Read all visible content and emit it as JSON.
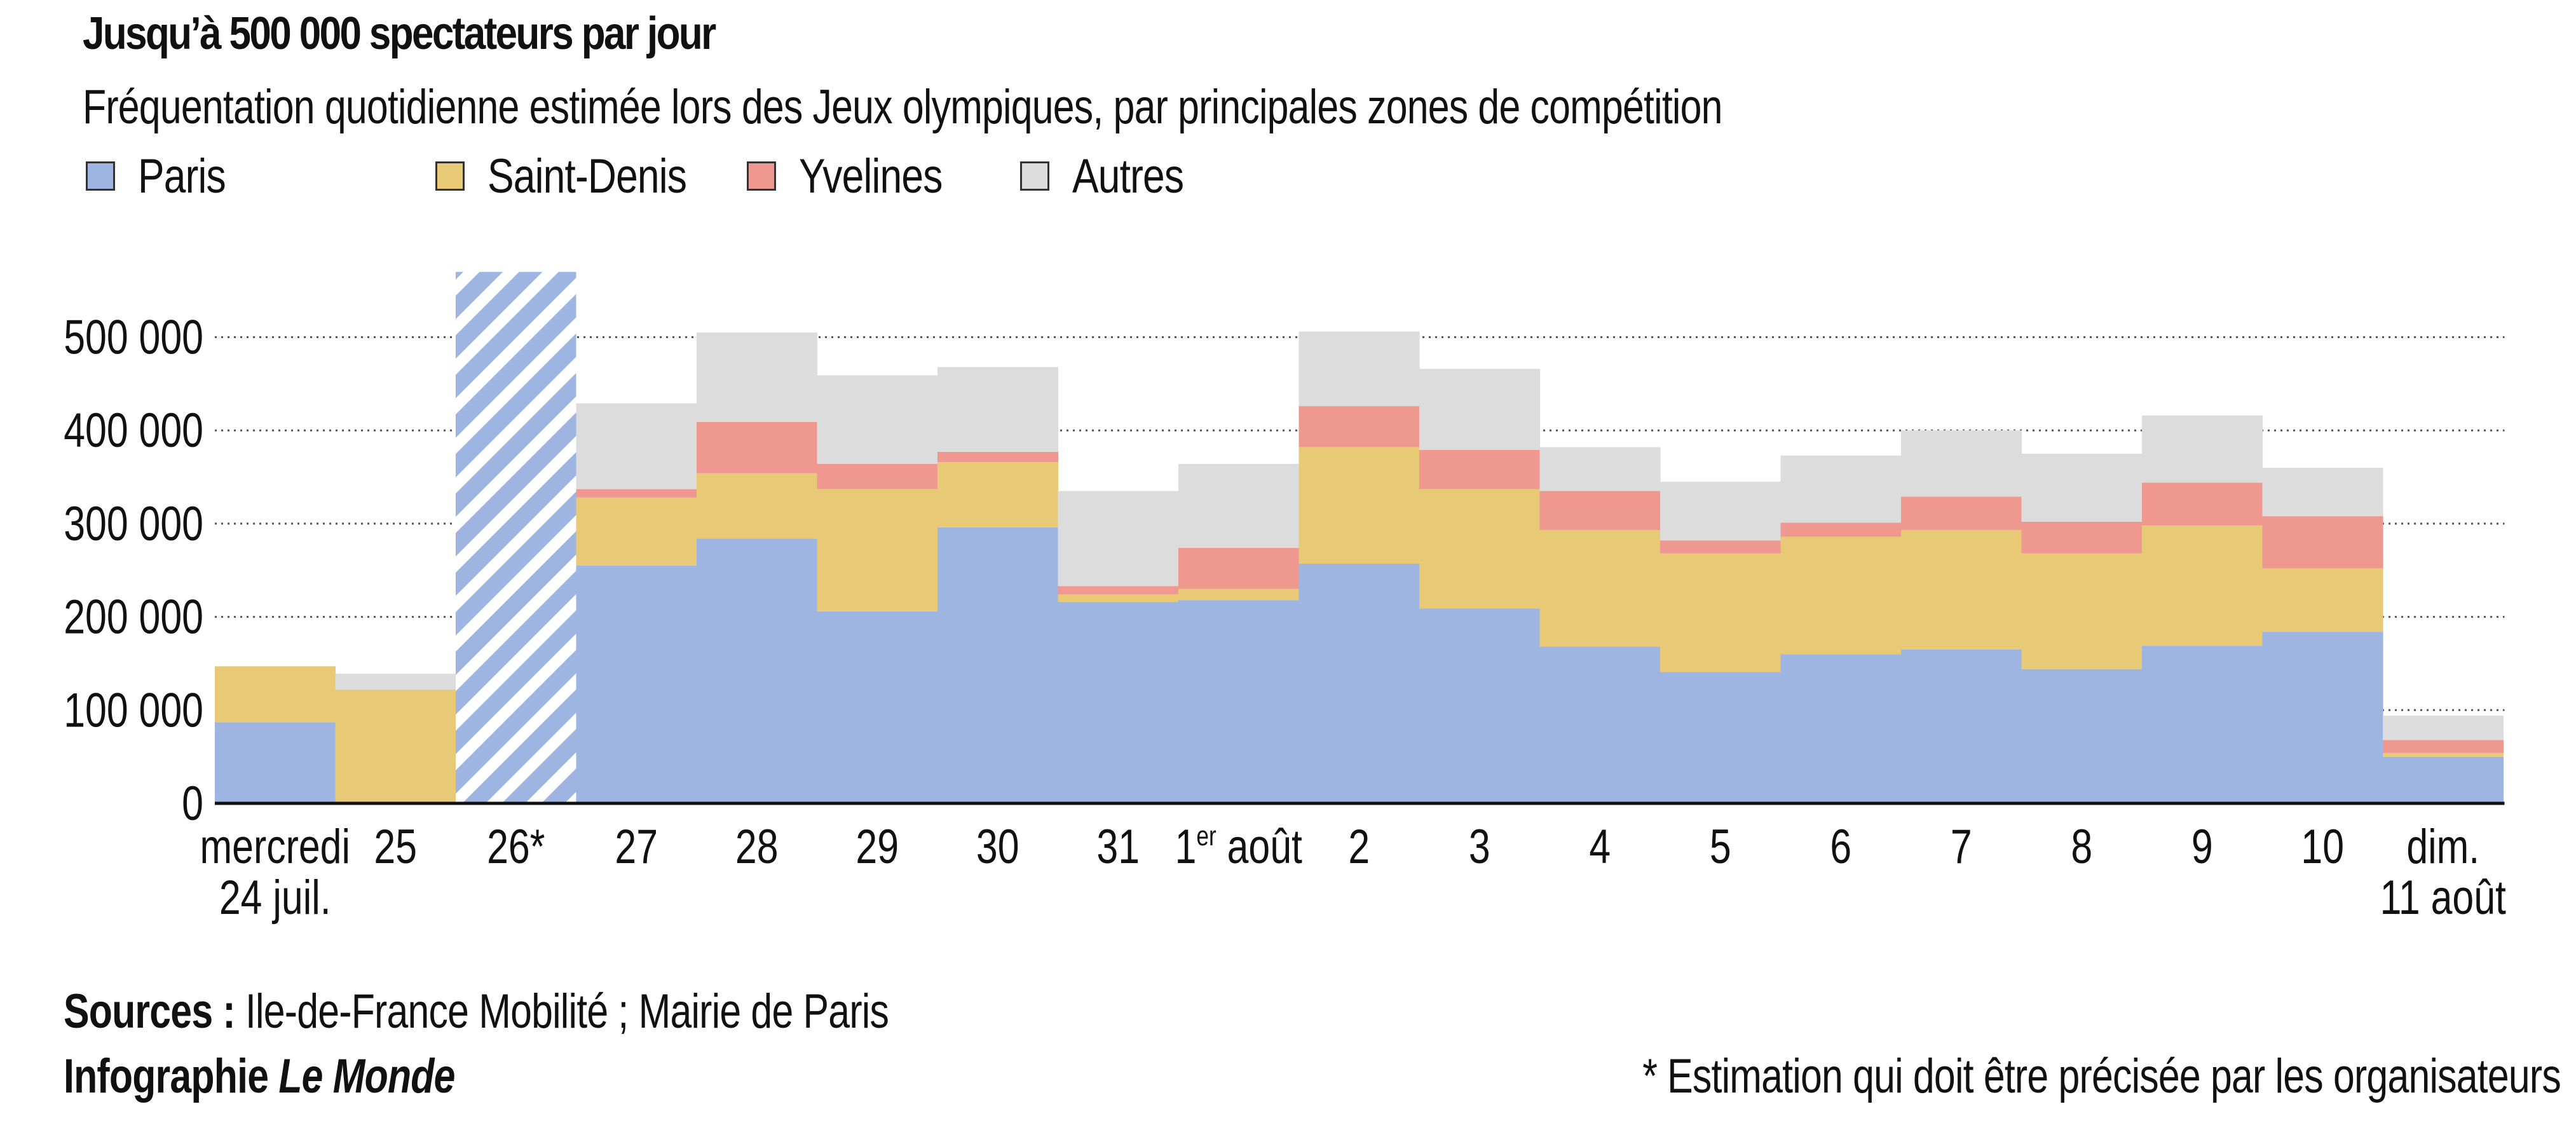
{
  "header": {
    "title": "Jusqu’à 500 000 spectateurs par jour",
    "subtitle": "Fréquentation quotidienne estimée lors des Jeux olympiques, par principales zones de compétition"
  },
  "footer": {
    "sources_label": "Sources :",
    "sources_text": " Ile-de-France Mobilité ; Mairie de Paris",
    "credit_label": "Infographie ",
    "credit_outlet": "Le Monde",
    "note": "* Estimation qui doit être précisée par les organisateurs"
  },
  "chart_data": {
    "type": "bar",
    "stacked": true,
    "title": "Jusqu’à 500 000 spectateurs par jour",
    "subtitle": "Fréquentation quotidienne estimée lors des Jeux olympiques, par principales zones de compétition",
    "categories": [
      "mercredi\n24 juil.",
      "25",
      "26*",
      "27",
      "28",
      "29",
      "30",
      "31",
      "1er août",
      "2",
      "3",
      "4",
      "5",
      "6",
      "7",
      "8",
      "9",
      "10",
      "dim.\n11 août"
    ],
    "series": [
      {
        "name": "Paris",
        "color": "#9db5e0",
        "values": [
          87000,
          0,
          0,
          255000,
          284000,
          206000,
          296000,
          216000,
          218000,
          257000,
          209000,
          168000,
          141000,
          160000,
          165000,
          144000,
          169000,
          184000,
          50000
        ]
      },
      {
        "name": "Saint-Denis",
        "color": "#e7c976",
        "values": [
          60000,
          122000,
          0,
          73000,
          70000,
          131000,
          70000,
          8000,
          12000,
          125000,
          128000,
          125000,
          127000,
          126000,
          128000,
          124000,
          129000,
          68000,
          4000
        ]
      },
      {
        "name": "Yvelines",
        "color": "#ef9890",
        "values": [
          0,
          0,
          0,
          9000,
          55000,
          27000,
          11000,
          9000,
          44000,
          44000,
          42000,
          42000,
          14000,
          15000,
          36000,
          34000,
          46000,
          56000,
          14000
        ]
      },
      {
        "name": "Autres",
        "color": "#dcdcdc",
        "values": [
          0,
          17000,
          0,
          92000,
          96000,
          95000,
          91000,
          102000,
          90000,
          80000,
          87000,
          47000,
          63000,
          72000,
          71000,
          73000,
          72000,
          52000,
          26000
        ]
      }
    ],
    "hatched_category": "26*",
    "hatched_color": "#9db5e0",
    "hatched_value": 570000,
    "ylim": [
      0,
      570000
    ],
    "yticks": [
      0,
      100000,
      200000,
      300000,
      400000,
      500000
    ],
    "ytick_labels": [
      "0",
      "100 000",
      "200 000",
      "300 000",
      "400 000",
      "500 000"
    ],
    "grid": "dotted",
    "legend_position": "top-left",
    "xlabel": "",
    "ylabel": ""
  }
}
